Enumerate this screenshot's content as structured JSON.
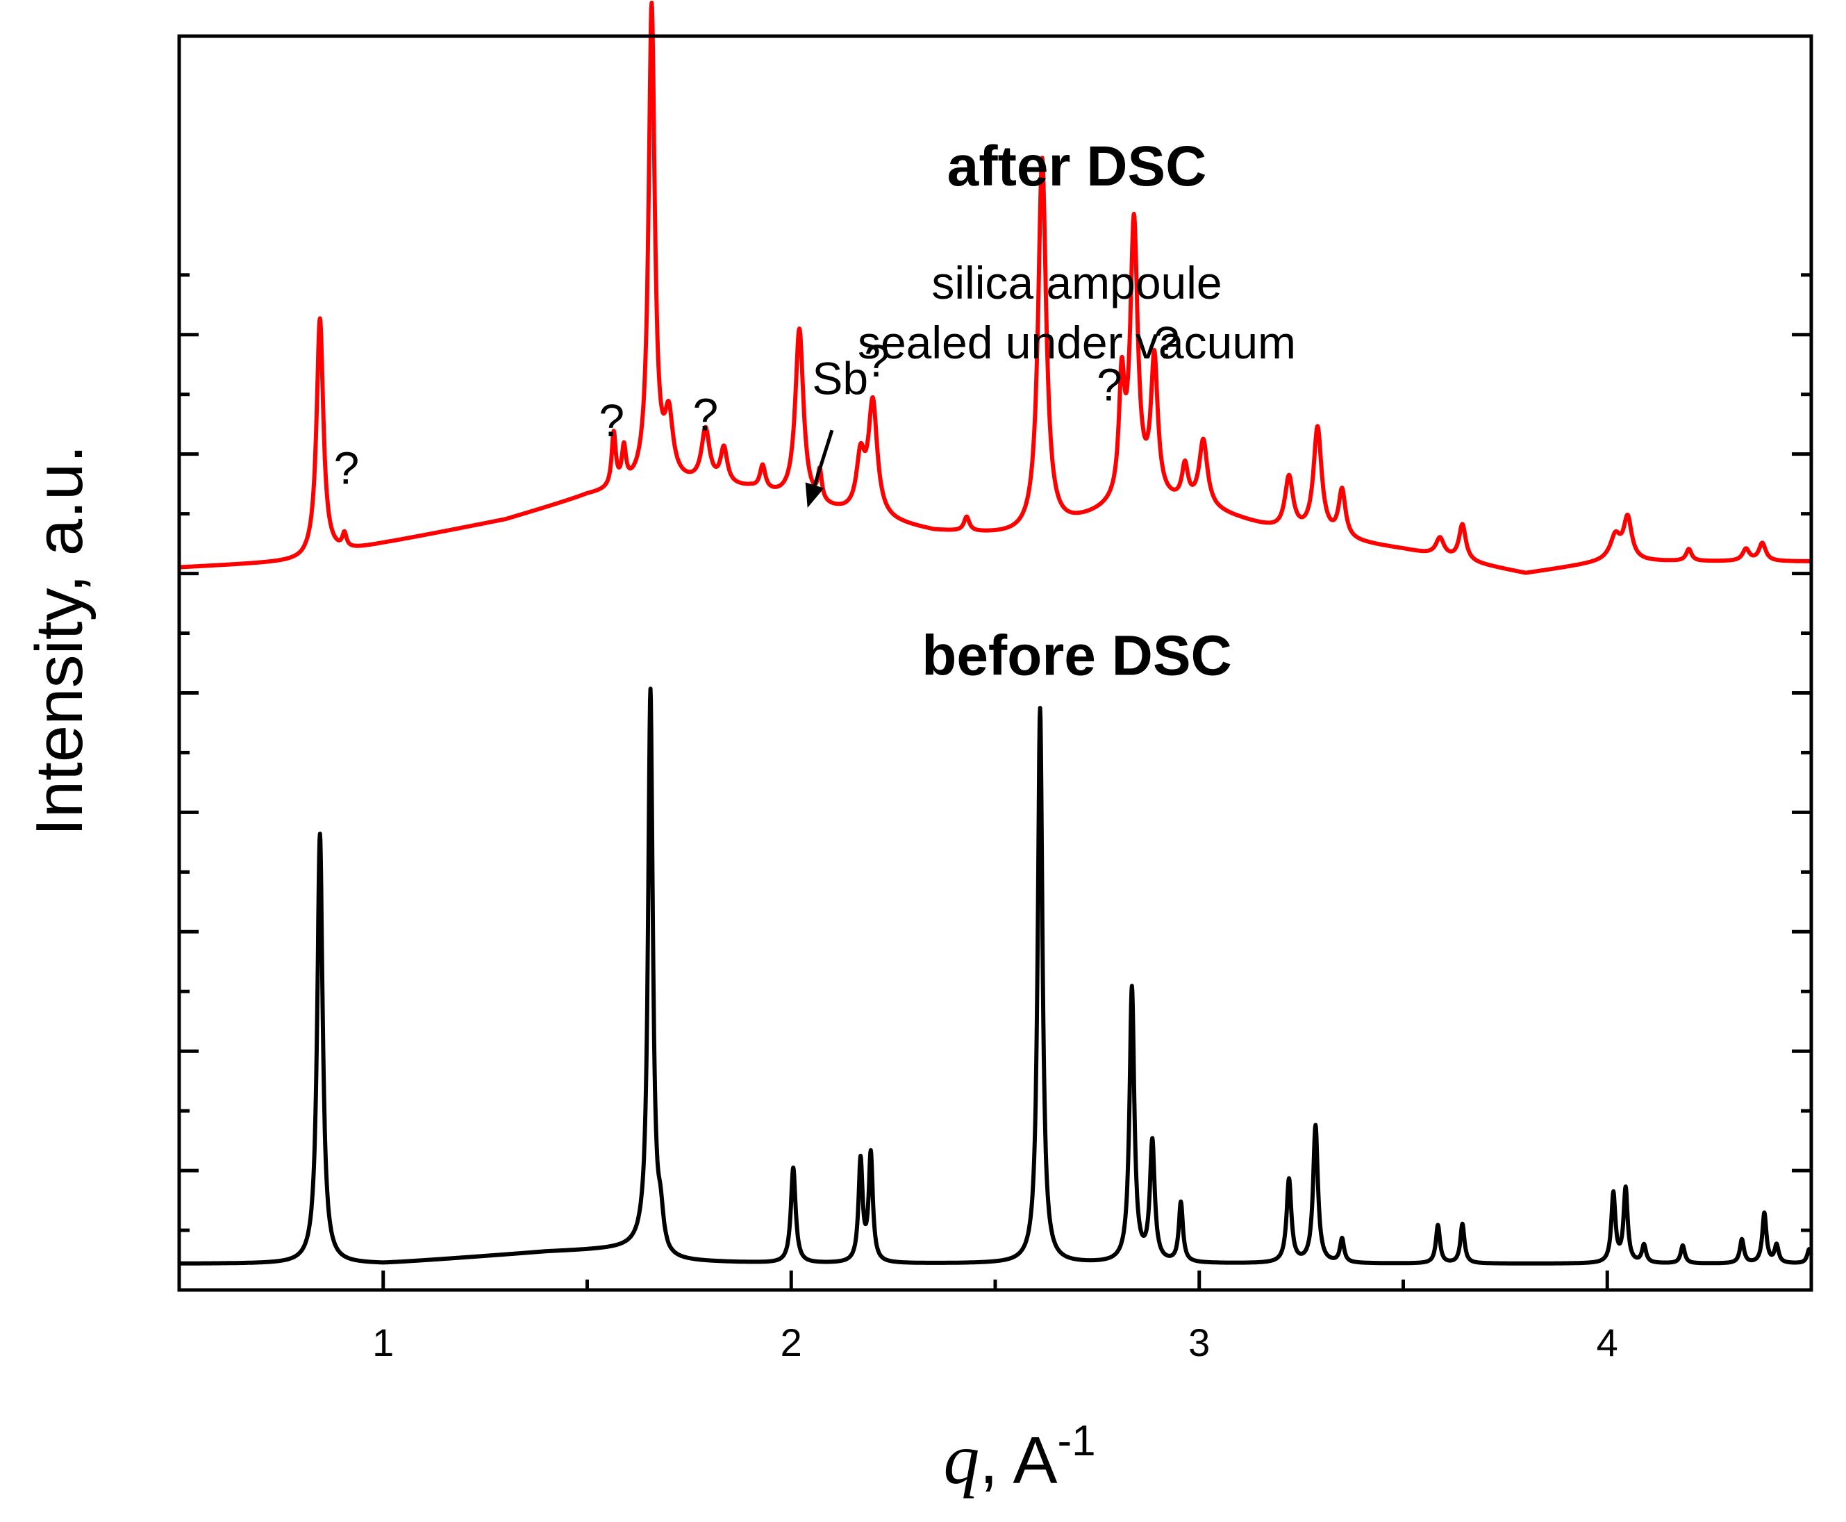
{
  "chart_data": {
    "type": "line",
    "title": "",
    "xlabel_var": "q",
    "xlabel_rest": ", A",
    "xlabel_sup": "-1",
    "ylabel": "Intensity, a.u.",
    "xlim": [
      0.5,
      4.5
    ],
    "ylim": [
      0,
      10.5
    ],
    "x_ticks": [
      1,
      2,
      3,
      4
    ],
    "x_tick_labels": [
      "1",
      "2",
      "3",
      "4"
    ],
    "y_ticks": [
      0,
      1,
      2,
      3,
      4,
      5,
      6,
      7,
      8
    ],
    "y_ticks_minor": [
      0.5,
      1.5,
      2.5,
      3.5,
      4.5,
      5.5,
      6.5,
      7.5,
      8.5
    ],
    "series": [
      {
        "name": "before DSC",
        "color": "#000000",
        "baseline": [
          [
            0.5,
            0.22
          ],
          [
            1.0,
            0.22
          ],
          [
            1.4,
            0.32
          ],
          [
            1.63,
            0.35
          ],
          [
            1.7,
            0.24
          ],
          [
            2.0,
            0.22
          ],
          [
            4.5,
            0.22
          ]
        ],
        "peaks": [
          {
            "x": 0.845,
            "h": 3.6,
            "w": 0.008
          },
          {
            "x": 1.655,
            "h": 4.7,
            "w": 0.007
          },
          {
            "x": 1.68,
            "h": 0.25,
            "w": 0.008
          },
          {
            "x": 2.005,
            "h": 0.8,
            "w": 0.007
          },
          {
            "x": 2.17,
            "h": 0.85,
            "w": 0.006
          },
          {
            "x": 2.195,
            "h": 0.9,
            "w": 0.006
          },
          {
            "x": 2.61,
            "h": 4.65,
            "w": 0.007
          },
          {
            "x": 2.835,
            "h": 2.3,
            "w": 0.007
          },
          {
            "x": 2.885,
            "h": 1.0,
            "w": 0.007
          },
          {
            "x": 2.955,
            "h": 0.5,
            "w": 0.006
          },
          {
            "x": 3.22,
            "h": 0.7,
            "w": 0.007
          },
          {
            "x": 3.285,
            "h": 1.15,
            "w": 0.007
          },
          {
            "x": 3.35,
            "h": 0.2,
            "w": 0.006
          },
          {
            "x": 3.585,
            "h": 0.32,
            "w": 0.006
          },
          {
            "x": 3.645,
            "h": 0.33,
            "w": 0.006
          },
          {
            "x": 4.015,
            "h": 0.58,
            "w": 0.006
          },
          {
            "x": 4.045,
            "h": 0.62,
            "w": 0.006
          },
          {
            "x": 4.09,
            "h": 0.15,
            "w": 0.006
          },
          {
            "x": 4.185,
            "h": 0.15,
            "w": 0.006
          },
          {
            "x": 4.33,
            "h": 0.2,
            "w": 0.006
          },
          {
            "x": 4.385,
            "h": 0.42,
            "w": 0.006
          },
          {
            "x": 4.415,
            "h": 0.15,
            "w": 0.006
          },
          {
            "x": 4.495,
            "h": 0.12,
            "w": 0.006
          }
        ]
      },
      {
        "name": "after DSC",
        "color": "#ff0000",
        "baseline": [
          [
            0.5,
            6.05
          ],
          [
            0.8,
            6.1
          ],
          [
            1.0,
            6.25
          ],
          [
            1.3,
            6.45
          ],
          [
            1.5,
            6.65
          ],
          [
            1.7,
            6.75
          ],
          [
            1.9,
            6.7
          ],
          [
            2.05,
            6.55
          ],
          [
            2.35,
            6.35
          ],
          [
            2.6,
            6.3
          ],
          [
            2.85,
            6.6
          ],
          [
            3.0,
            6.55
          ],
          [
            3.2,
            6.35
          ],
          [
            3.5,
            6.2
          ],
          [
            3.8,
            6.0
          ],
          [
            4.0,
            6.1
          ],
          [
            4.5,
            6.1
          ]
        ],
        "peaks": [
          {
            "x": 0.845,
            "h": 2.0,
            "w": 0.01
          },
          {
            "x": 0.905,
            "h": 0.12,
            "w": 0.006
          },
          {
            "x": 1.565,
            "h": 0.45,
            "w": 0.006
          },
          {
            "x": 1.59,
            "h": 0.3,
            "w": 0.006
          },
          {
            "x": 1.658,
            "h": 4.0,
            "w": 0.009
          },
          {
            "x": 1.7,
            "h": 0.5,
            "w": 0.012
          },
          {
            "x": 1.79,
            "h": 0.45,
            "w": 0.012
          },
          {
            "x": 1.835,
            "h": 0.3,
            "w": 0.01
          },
          {
            "x": 1.93,
            "h": 0.2,
            "w": 0.008
          },
          {
            "x": 2.02,
            "h": 1.45,
            "w": 0.012
          },
          {
            "x": 2.07,
            "h": 0.25,
            "w": 0.006
          },
          {
            "x": 2.17,
            "h": 0.45,
            "w": 0.012
          },
          {
            "x": 2.2,
            "h": 0.95,
            "w": 0.013
          },
          {
            "x": 2.43,
            "h": 0.12,
            "w": 0.008
          },
          {
            "x": 2.615,
            "h": 3.15,
            "w": 0.012
          },
          {
            "x": 2.81,
            "h": 0.95,
            "w": 0.008
          },
          {
            "x": 2.84,
            "h": 2.3,
            "w": 0.011
          },
          {
            "x": 2.89,
            "h": 1.15,
            "w": 0.01
          },
          {
            "x": 2.965,
            "h": 0.3,
            "w": 0.009
          },
          {
            "x": 3.01,
            "h": 0.55,
            "w": 0.012
          },
          {
            "x": 3.22,
            "h": 0.45,
            "w": 0.012
          },
          {
            "x": 3.29,
            "h": 0.9,
            "w": 0.012
          },
          {
            "x": 3.35,
            "h": 0.4,
            "w": 0.01
          },
          {
            "x": 3.59,
            "h": 0.15,
            "w": 0.012
          },
          {
            "x": 3.645,
            "h": 0.3,
            "w": 0.01
          },
          {
            "x": 4.02,
            "h": 0.2,
            "w": 0.015
          },
          {
            "x": 4.05,
            "h": 0.35,
            "w": 0.012
          },
          {
            "x": 4.2,
            "h": 0.1,
            "w": 0.008
          },
          {
            "x": 4.34,
            "h": 0.1,
            "w": 0.01
          },
          {
            "x": 4.38,
            "h": 0.15,
            "w": 0.01
          }
        ]
      }
    ],
    "annotations": [
      {
        "text": "after DSC",
        "x": 2.7,
        "y": 9.25,
        "bold": true,
        "size": "large"
      },
      {
        "text": "silica ampoule",
        "x": 2.7,
        "y": 8.3,
        "bold": false,
        "size": "medium"
      },
      {
        "text": "sealed under vacuum",
        "x": 2.7,
        "y": 7.8,
        "bold": false,
        "size": "medium"
      },
      {
        "text": "before DSC",
        "x": 2.7,
        "y": 5.15,
        "bold": true,
        "size": "large"
      },
      {
        "text": "Sb",
        "x": 2.12,
        "y": 7.5,
        "bold": false,
        "size": "medium"
      },
      {
        "text": "?",
        "x": 0.91,
        "y": 6.75,
        "bold": false,
        "size": "medium"
      },
      {
        "text": "?",
        "x": 1.56,
        "y": 7.15,
        "bold": false,
        "size": "medium"
      },
      {
        "text": "?",
        "x": 1.79,
        "y": 7.2,
        "bold": false,
        "size": "medium"
      },
      {
        "text": "?",
        "x": 2.21,
        "y": 7.65,
        "bold": false,
        "size": "medium"
      },
      {
        "text": "?",
        "x": 2.78,
        "y": 7.45,
        "bold": false,
        "size": "medium"
      },
      {
        "text": "?",
        "x": 2.92,
        "y": 7.8,
        "bold": false,
        "size": "medium"
      }
    ],
    "arrows": [
      {
        "from": [
          2.1,
          7.2
        ],
        "to": [
          2.04,
          6.55
        ]
      }
    ]
  }
}
